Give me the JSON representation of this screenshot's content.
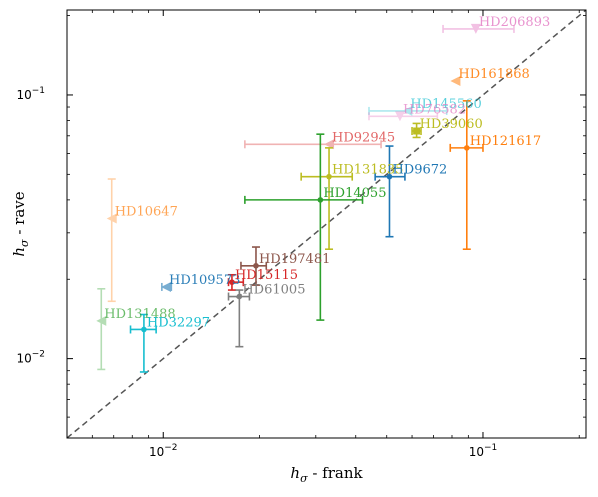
{
  "chart_data": {
    "type": "scatter",
    "xlabel": {
      "main": "h",
      "sub": "σ",
      "rest": " - frank"
    },
    "ylabel": {
      "main": "h",
      "sub": "σ",
      "rest": " - rave"
    },
    "xscale": "log",
    "yscale": "log",
    "xlim": [
      0.005,
      0.21
    ],
    "ylim": [
      0.005,
      0.21
    ],
    "x_ticks": [
      {
        "value": 0.01,
        "base": "10",
        "exp": "−2"
      },
      {
        "value": 0.1,
        "base": "10",
        "exp": "−1"
      }
    ],
    "y_ticks": [
      {
        "value": 0.01,
        "base": "10",
        "exp": "−2"
      },
      {
        "value": 0.1,
        "base": "10",
        "exp": "−1"
      }
    ],
    "reference_line": "y = x",
    "grid": false,
    "points": [
      {
        "label": "HD206893",
        "x": 0.095,
        "y": 0.178,
        "xerr": [
          0.075,
          0.125
        ],
        "yerr": null,
        "color": "#e377c2",
        "alpha": 0.45,
        "marker": "triangle-down"
      },
      {
        "label": "HD161868",
        "x": 0.082,
        "y": 0.113,
        "xerr": null,
        "yerr": null,
        "color": "#ff7f0e",
        "alpha": 0.55,
        "marker": "triangle-left"
      },
      {
        "label": "HD145560",
        "x": 0.058,
        "y": 0.087,
        "xerr": [
          0.044,
          0.077
        ],
        "yerr": null,
        "color": "#17becf",
        "alpha": 0.35,
        "marker": "triangle-left"
      },
      {
        "label": "HD76582",
        "x": 0.055,
        "y": 0.083,
        "xerr": [
          0.044,
          0.072
        ],
        "yerr": null,
        "color": "#e377c2",
        "alpha": 0.35,
        "marker": "triangle-down"
      },
      {
        "label": "HD39060",
        "x": 0.062,
        "y": 0.073,
        "xerr": [
          0.06,
          0.064
        ],
        "yerr": [
          0.069,
          0.078
        ],
        "color": "#bcbd22",
        "alpha": 1.0,
        "marker": "square"
      },
      {
        "label": "HD121617",
        "x": 0.089,
        "y": 0.063,
        "xerr": [
          0.079,
          0.1
        ],
        "yerr": [
          0.026,
          0.095
        ],
        "color": "#ff7f0e",
        "alpha": 1.0,
        "marker": "circle"
      },
      {
        "label": "HD92945",
        "x": 0.033,
        "y": 0.065,
        "xerr": [
          0.018,
          0.048
        ],
        "yerr": null,
        "color": "#d62728",
        "alpha": 0.35,
        "marker": "triangle-left"
      },
      {
        "label": "HD131835",
        "x": 0.033,
        "y": 0.049,
        "xerr": [
          0.027,
          0.039
        ],
        "yerr": [
          0.026,
          0.063
        ],
        "color": "#bcbd22",
        "alpha": 1.0,
        "marker": "circle"
      },
      {
        "label": "HD9672",
        "x": 0.051,
        "y": 0.049,
        "xerr": [
          0.046,
          0.057
        ],
        "yerr": [
          0.029,
          0.064
        ],
        "color": "#1f77b4",
        "alpha": 1.0,
        "marker": "circle"
      },
      {
        "label": "HD14055",
        "x": 0.031,
        "y": 0.04,
        "xerr": [
          0.018,
          0.042
        ],
        "yerr": [
          0.014,
          0.071
        ],
        "color": "#2ca02c",
        "alpha": 1.0,
        "marker": "circle"
      },
      {
        "label": "HD10647",
        "x": 0.0069,
        "y": 0.034,
        "xerr": null,
        "yerr": [
          0.0165,
          0.048
        ],
        "color": "#ff7f0e",
        "alpha": 0.35,
        "marker": "triangle-left"
      },
      {
        "label": "HD197481",
        "x": 0.0195,
        "y": 0.0225,
        "xerr": [
          0.0175,
          0.021
        ],
        "yerr": [
          0.019,
          0.0265
        ],
        "color": "#8c564b",
        "alpha": 1.0,
        "marker": "circle"
      },
      {
        "label": "HD109573",
        "x": 0.0102,
        "y": 0.0187,
        "xerr": [
          0.0099,
          0.0106
        ],
        "yerr": null,
        "color": "#1f77b4",
        "alpha": 0.6,
        "marker": "triangle-left"
      },
      {
        "label": "HD15115",
        "x": 0.0164,
        "y": 0.0195,
        "xerr": [
          0.016,
          0.0178
        ],
        "yerr": [
          0.0182,
          0.0208
        ],
        "color": "#d62728",
        "alpha": 1.0,
        "marker": "circle"
      },
      {
        "label": "HD61005",
        "x": 0.0173,
        "y": 0.0172,
        "xerr": [
          0.016,
          0.0186
        ],
        "yerr": [
          0.0111,
          0.0182
        ],
        "color": "#7f7f7f",
        "alpha": 1.0,
        "marker": "circle"
      },
      {
        "label": "HD131488",
        "x": 0.0064,
        "y": 0.0139,
        "xerr": null,
        "yerr": [
          0.0091,
          0.0184
        ],
        "color": "#2ca02c",
        "alpha": 0.35,
        "marker": "triangle-left"
      },
      {
        "label": "HD32297",
        "x": 0.0087,
        "y": 0.0129,
        "xerr": [
          0.0079,
          0.0095
        ],
        "yerr": [
          0.0089,
          0.0147
        ],
        "color": "#17becf",
        "alpha": 1.0,
        "marker": "circle"
      }
    ]
  }
}
